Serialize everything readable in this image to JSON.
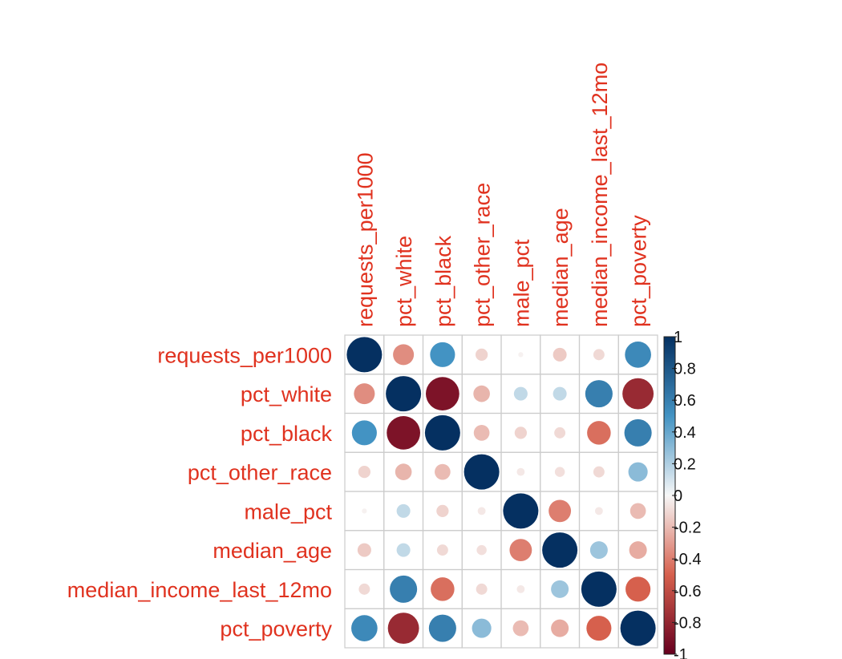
{
  "chart_data": {
    "type": "heatmap",
    "subtype": "correlation-circle-matrix",
    "variables": [
      "requests_per1000",
      "pct_white",
      "pct_black",
      "pct_other_race",
      "male_pct",
      "median_age",
      "median_income_last_12mo",
      "pct_poverty"
    ],
    "matrix": [
      [
        1.0,
        -0.35,
        0.5,
        -0.12,
        -0.02,
        -0.15,
        -0.1,
        0.55
      ],
      [
        -0.35,
        1.0,
        -0.9,
        -0.22,
        0.15,
        0.15,
        0.6,
        -0.78
      ],
      [
        0.5,
        -0.9,
        1.0,
        -0.2,
        -0.12,
        -0.1,
        -0.45,
        0.6
      ],
      [
        -0.12,
        -0.22,
        -0.2,
        1.0,
        -0.05,
        -0.08,
        -0.1,
        0.3
      ],
      [
        -0.02,
        0.15,
        -0.12,
        -0.05,
        1.0,
        -0.4,
        -0.05,
        -0.2
      ],
      [
        -0.15,
        0.15,
        -0.1,
        -0.08,
        -0.4,
        1.0,
        0.25,
        -0.25
      ],
      [
        -0.1,
        0.6,
        -0.45,
        -0.1,
        -0.05,
        0.25,
        1.0,
        -0.5
      ],
      [
        0.55,
        -0.78,
        0.6,
        0.3,
        -0.2,
        -0.25,
        -0.5,
        1.0
      ]
    ],
    "colorbar": {
      "range": [
        -1,
        1
      ],
      "ticks": [
        1,
        0.8,
        0.6,
        0.4,
        0.2,
        0,
        -0.2,
        -0.4,
        -0.6,
        -0.8,
        -1
      ],
      "tick_labels": [
        "1",
        "0.8",
        "0.6",
        "0.4",
        "0.2",
        "0",
        "-0.2",
        "-0.4",
        "-0.6",
        "-0.8",
        "-1"
      ],
      "position": "right"
    },
    "palette": {
      "neg_end": "#67001f",
      "neg_mid": "#d6604d",
      "neutral": "#f7f7f7",
      "pos_mid": "#4393c3",
      "pos_end": "#053061",
      "label_color": "#e0321f",
      "grid_color": "#cccccc"
    },
    "grid": true,
    "legend": "right"
  }
}
